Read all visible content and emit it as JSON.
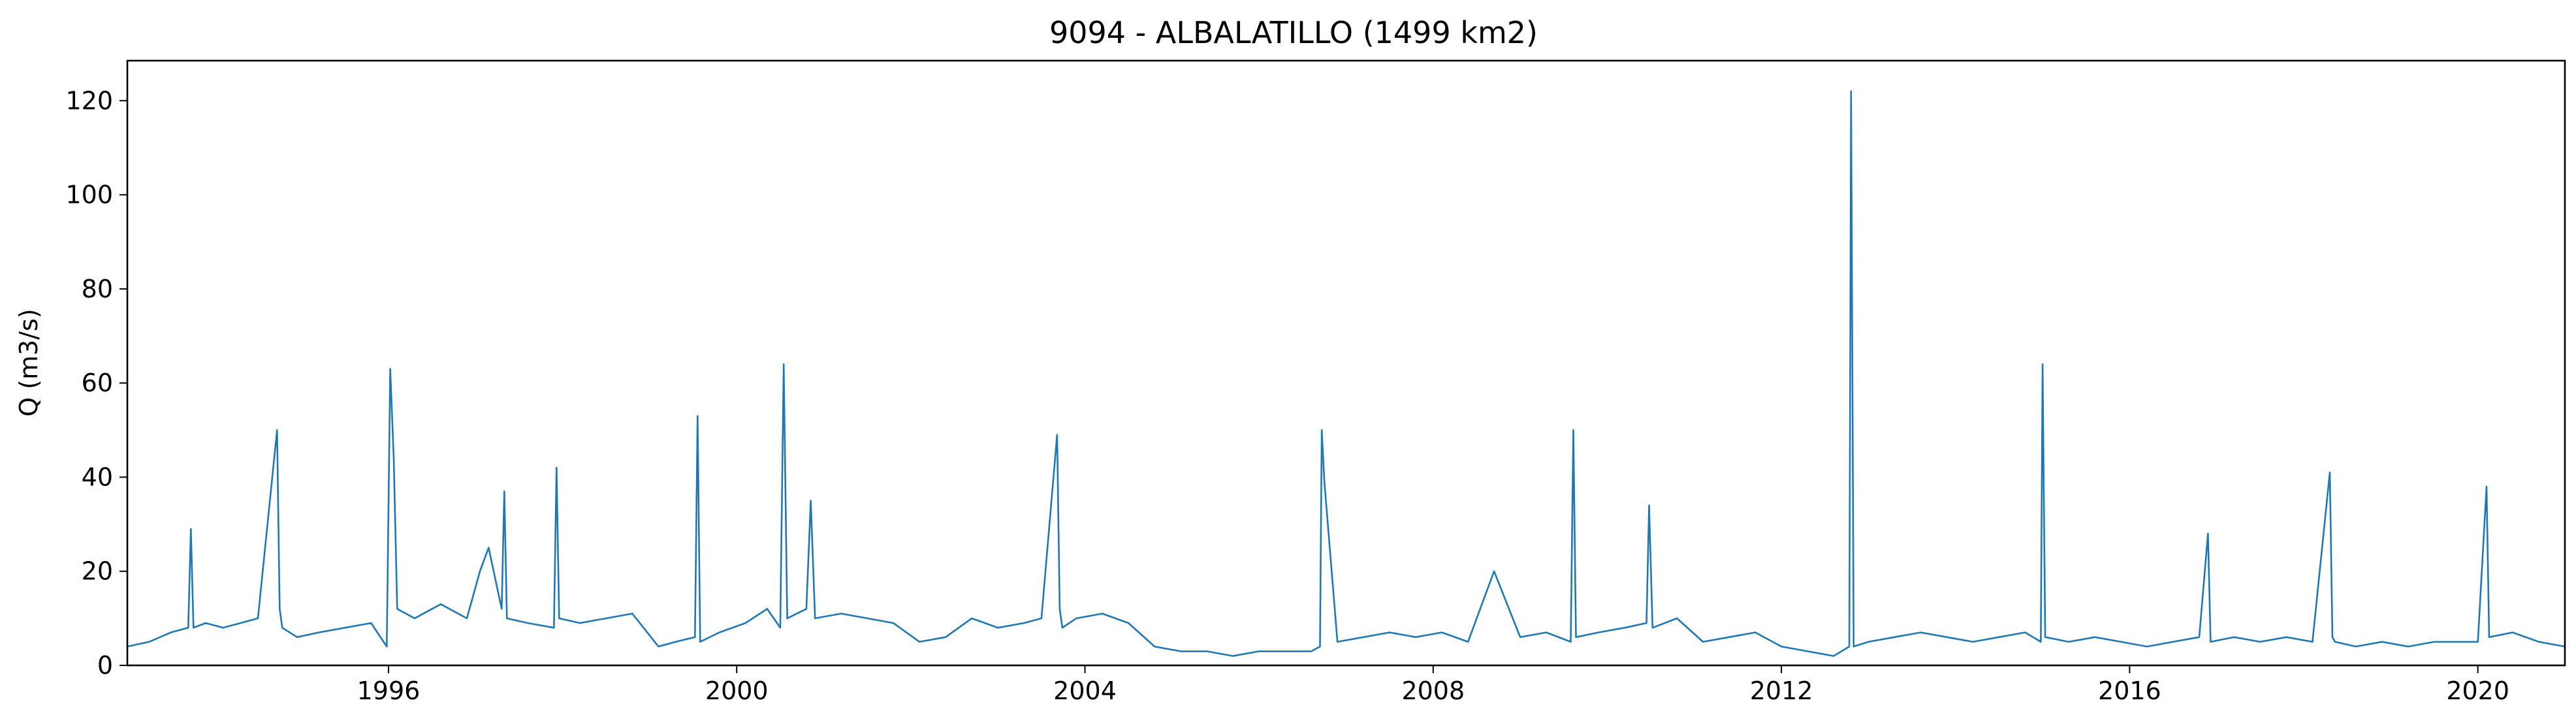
{
  "chart_data": {
    "type": "line",
    "title": "9094 - ALBALATILLO (1499 km2)",
    "xlabel": "",
    "ylabel": "Q (m3/s)",
    "xlim": [
      1993.0,
      2021.0
    ],
    "ylim": [
      0,
      128.5
    ],
    "xticks": [
      1996,
      2000,
      2004,
      2008,
      2012,
      2016,
      2020
    ],
    "yticks": [
      0,
      20,
      40,
      60,
      80,
      100,
      120
    ],
    "grid": false,
    "legend": "none",
    "color": "#1f77b4",
    "series": [
      {
        "x": [
          1993.0,
          1993.25,
          1993.5,
          1993.7,
          1993.73,
          1993.76,
          1993.9,
          1994.1,
          1994.3,
          1994.5,
          1994.72,
          1994.75,
          1994.78,
          1994.95,
          1995.2,
          1995.5,
          1995.8,
          1995.98,
          1996.02,
          1996.06,
          1996.1,
          1996.3,
          1996.6,
          1996.9,
          1997.05,
          1997.15,
          1997.3,
          1997.33,
          1997.36,
          1997.6,
          1997.9,
          1997.93,
          1997.96,
          1998.2,
          1998.5,
          1998.8,
          1999.1,
          1999.3,
          1999.52,
          1999.55,
          1999.58,
          1999.8,
          2000.1,
          2000.35,
          2000.5,
          2000.54,
          2000.58,
          2000.8,
          2000.85,
          2000.9,
          2001.2,
          2001.5,
          2001.8,
          2002.1,
          2002.4,
          2002.7,
          2003.0,
          2003.3,
          2003.5,
          2003.68,
          2003.71,
          2003.74,
          2003.9,
          2004.2,
          2004.5,
          2004.8,
          2005.1,
          2005.4,
          2005.7,
          2006.0,
          2006.3,
          2006.6,
          2006.7,
          2006.72,
          2006.75,
          2006.9,
          2007.2,
          2007.5,
          2007.8,
          2008.1,
          2008.4,
          2008.7,
          2009.0,
          2009.3,
          2009.58,
          2009.61,
          2009.64,
          2009.9,
          2010.2,
          2010.45,
          2010.48,
          2010.52,
          2010.8,
          2011.1,
          2011.4,
          2011.7,
          2012.0,
          2012.3,
          2012.6,
          2012.78,
          2012.8,
          2012.83,
          2013.0,
          2013.3,
          2013.6,
          2013.9,
          2014.2,
          2014.5,
          2014.8,
          2014.98,
          2015.0,
          2015.03,
          2015.3,
          2015.6,
          2015.9,
          2016.2,
          2016.5,
          2016.8,
          2016.9,
          2016.93,
          2017.2,
          2017.5,
          2017.8,
          2018.1,
          2018.3,
          2018.33,
          2018.36,
          2018.6,
          2018.9,
          2019.2,
          2019.5,
          2019.8,
          2020.0,
          2020.1,
          2020.13,
          2020.4,
          2020.7,
          2021.0
        ],
        "values": [
          4,
          5,
          7,
          8,
          29,
          8,
          9,
          8,
          9,
          10,
          50,
          12,
          8,
          6,
          7,
          8,
          9,
          4,
          63,
          44,
          12,
          10,
          13,
          10,
          20,
          25,
          12,
          37,
          10,
          9,
          8,
          42,
          10,
          9,
          10,
          11,
          4,
          5,
          6,
          53,
          5,
          7,
          9,
          12,
          8,
          64,
          10,
          12,
          35,
          10,
          11,
          10,
          9,
          5,
          6,
          10,
          8,
          9,
          10,
          49,
          12,
          8,
          10,
          11,
          9,
          4,
          3,
          3,
          2,
          3,
          3,
          3,
          4,
          50,
          39,
          5,
          6,
          7,
          6,
          7,
          5,
          20,
          6,
          7,
          5,
          50,
          6,
          7,
          8,
          9,
          34,
          8,
          10,
          5,
          6,
          7,
          4,
          3,
          2,
          4,
          122,
          4,
          5,
          6,
          7,
          6,
          5,
          6,
          7,
          5,
          64,
          6,
          5,
          6,
          5,
          4,
          5,
          6,
          28,
          5,
          6,
          5,
          6,
          5,
          41,
          6,
          5,
          4,
          5,
          4,
          5,
          5,
          5,
          38,
          6,
          7,
          5,
          4
        ]
      }
    ]
  }
}
